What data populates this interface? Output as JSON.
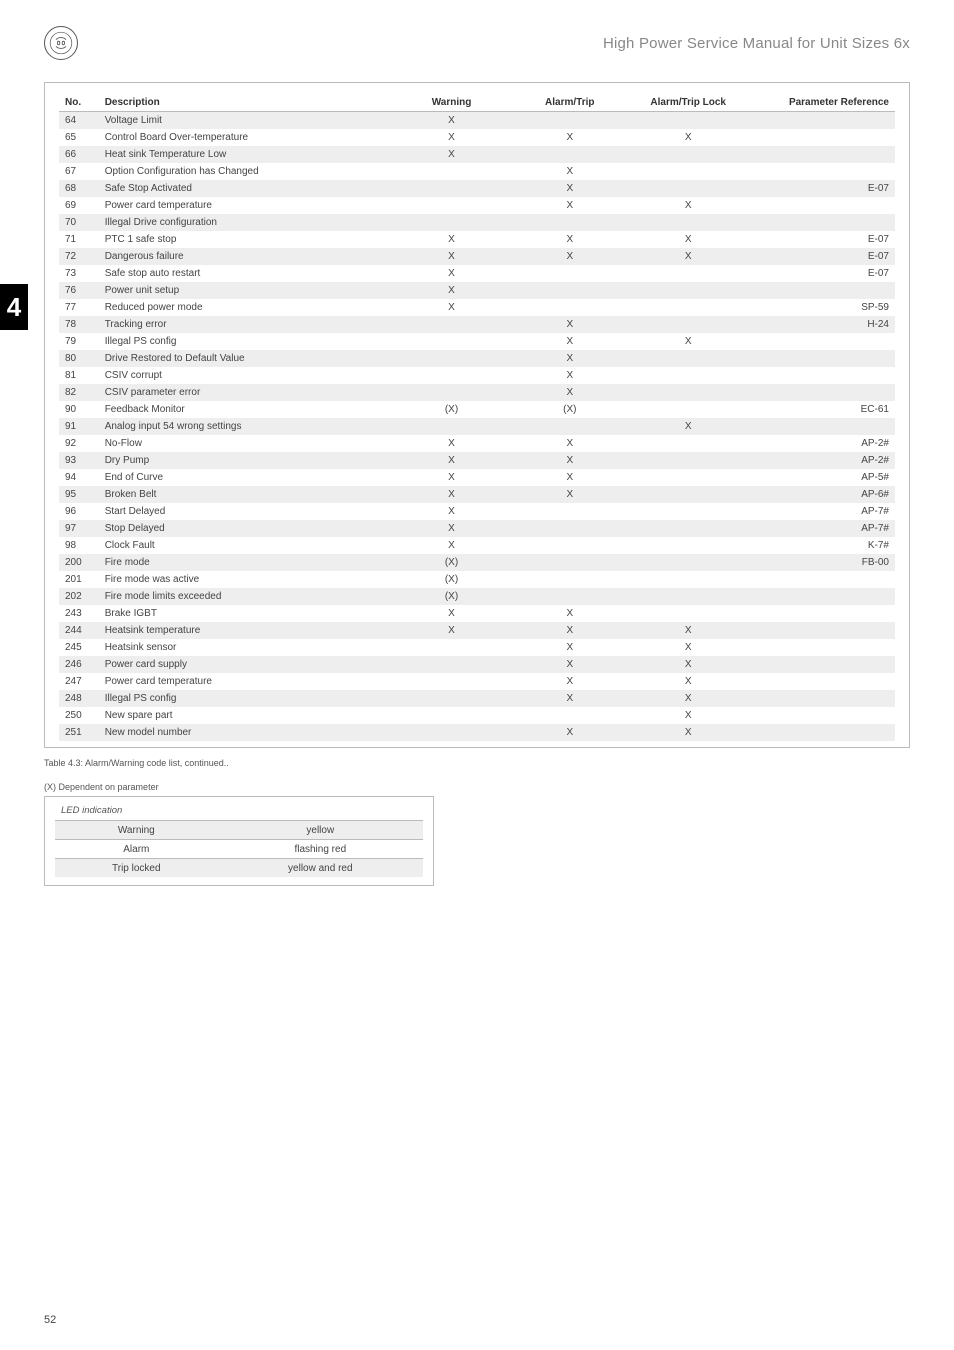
{
  "header": {
    "title": "High Power Service Manual for Unit Sizes 6x"
  },
  "sideTab": "4",
  "pageNumber": "52",
  "mainTable": {
    "columns": {
      "no": "No.",
      "desc": "Description",
      "warn": "Warning",
      "trip": "Alarm/Trip",
      "lock": "Alarm/Trip Lock",
      "ref": "Parameter Reference"
    },
    "rows": [
      {
        "no": "64",
        "desc": "Voltage Limit",
        "warn": "X",
        "trip": "",
        "lock": "",
        "ref": "",
        "shaded": true
      },
      {
        "no": "65",
        "desc": "Control Board Over-temperature",
        "warn": "X",
        "trip": "X",
        "lock": "X",
        "ref": "",
        "shaded": false
      },
      {
        "no": "66",
        "desc": "Heat sink Temperature Low",
        "warn": "X",
        "trip": "",
        "lock": "",
        "ref": "",
        "shaded": true
      },
      {
        "no": "67",
        "desc": "Option Configuration has Changed",
        "warn": "",
        "trip": "X",
        "lock": "",
        "ref": "",
        "shaded": false
      },
      {
        "no": "68",
        "desc": "Safe Stop Activated",
        "warn": "",
        "trip": "X",
        "lock": "",
        "ref": "E-07",
        "shaded": true
      },
      {
        "no": "69",
        "desc": "Power card temperature",
        "warn": "",
        "trip": "X",
        "lock": "X",
        "ref": "",
        "shaded": false
      },
      {
        "no": "70",
        "desc": "Illegal Drive configuration",
        "warn": "",
        "trip": "",
        "lock": "",
        "ref": "",
        "shaded": true
      },
      {
        "no": "71",
        "desc": "PTC 1 safe stop",
        "warn": "X",
        "trip": "X",
        "lock": "X",
        "ref": "E-07",
        "shaded": false
      },
      {
        "no": "72",
        "desc": "Dangerous failure",
        "warn": "X",
        "trip": "X",
        "lock": "X",
        "ref": "E-07",
        "shaded": true
      },
      {
        "no": "73",
        "desc": "Safe stop auto restart",
        "warn": "X",
        "trip": "",
        "lock": "",
        "ref": "E-07",
        "shaded": false
      },
      {
        "no": "76",
        "desc": "Power unit setup",
        "warn": "X",
        "trip": "",
        "lock": "",
        "ref": "",
        "shaded": true
      },
      {
        "no": "77",
        "desc": "Reduced power mode",
        "warn": "X",
        "trip": "",
        "lock": "",
        "ref": "SP-59",
        "shaded": false
      },
      {
        "no": "78",
        "desc": "Tracking error",
        "warn": "",
        "trip": "X",
        "lock": "",
        "ref": "H-24",
        "shaded": true
      },
      {
        "no": "79",
        "desc": "Illegal PS config",
        "warn": "",
        "trip": "X",
        "lock": "X",
        "ref": "",
        "shaded": false
      },
      {
        "no": "80",
        "desc": "Drive Restored to Default Value",
        "warn": "",
        "trip": "X",
        "lock": "",
        "ref": "",
        "shaded": true
      },
      {
        "no": "81",
        "desc": "CSIV corrupt",
        "warn": "",
        "trip": "X",
        "lock": "",
        "ref": "",
        "shaded": false
      },
      {
        "no": "82",
        "desc": "CSIV parameter error",
        "warn": "",
        "trip": "X",
        "lock": "",
        "ref": "",
        "shaded": true
      },
      {
        "no": "90",
        "desc": "Feedback Monitor",
        "warn": "(X)",
        "trip": "(X)",
        "lock": "",
        "ref": "EC-61",
        "shaded": false
      },
      {
        "no": "91",
        "desc": "Analog input 54 wrong settings",
        "warn": "",
        "trip": "",
        "lock": "X",
        "ref": "",
        "shaded": true
      },
      {
        "no": "92",
        "desc": "No-Flow",
        "warn": "X",
        "trip": "X",
        "lock": "",
        "ref": "AP-2#",
        "shaded": false
      },
      {
        "no": "93",
        "desc": "Dry Pump",
        "warn": "X",
        "trip": "X",
        "lock": "",
        "ref": "AP-2#",
        "shaded": true
      },
      {
        "no": "94",
        "desc": "End of Curve",
        "warn": "X",
        "trip": "X",
        "lock": "",
        "ref": "AP-5#",
        "shaded": false
      },
      {
        "no": "95",
        "desc": "Broken Belt",
        "warn": "X",
        "trip": "X",
        "lock": "",
        "ref": "AP-6#",
        "shaded": true
      },
      {
        "no": "96",
        "desc": "Start Delayed",
        "warn": "X",
        "trip": "",
        "lock": "",
        "ref": "AP-7#",
        "shaded": false
      },
      {
        "no": "97",
        "desc": "Stop Delayed",
        "warn": "X",
        "trip": "",
        "lock": "",
        "ref": "AP-7#",
        "shaded": true
      },
      {
        "no": "98",
        "desc": "Clock Fault",
        "warn": "X",
        "trip": "",
        "lock": "",
        "ref": "K-7#",
        "shaded": false
      },
      {
        "no": "200",
        "desc": "Fire mode",
        "warn": "(X)",
        "trip": "",
        "lock": "",
        "ref": "FB-00",
        "shaded": true
      },
      {
        "no": "201",
        "desc": "Fire mode was active",
        "warn": "(X)",
        "trip": "",
        "lock": "",
        "ref": "",
        "shaded": false
      },
      {
        "no": "202",
        "desc": "Fire mode limits exceeded",
        "warn": "(X)",
        "trip": "",
        "lock": "",
        "ref": "",
        "shaded": true
      },
      {
        "no": "243",
        "desc": "Brake IGBT",
        "warn": "X",
        "trip": "X",
        "lock": "",
        "ref": "",
        "shaded": false
      },
      {
        "no": "244",
        "desc": "Heatsink temperature",
        "warn": "X",
        "trip": "X",
        "lock": "X",
        "ref": "",
        "shaded": true
      },
      {
        "no": "245",
        "desc": "Heatsink sensor",
        "warn": "",
        "trip": "X",
        "lock": "X",
        "ref": "",
        "shaded": false
      },
      {
        "no": "246",
        "desc": "Power card supply",
        "warn": "",
        "trip": "X",
        "lock": "X",
        "ref": "",
        "shaded": true
      },
      {
        "no": "247",
        "desc": "Power card temperature",
        "warn": "",
        "trip": "X",
        "lock": "X",
        "ref": "",
        "shaded": false
      },
      {
        "no": "248",
        "desc": "Illegal PS config",
        "warn": "",
        "trip": "X",
        "lock": "X",
        "ref": "",
        "shaded": true
      },
      {
        "no": "250",
        "desc": "New spare part",
        "warn": "",
        "trip": "",
        "lock": "X",
        "ref": "",
        "shaded": false
      },
      {
        "no": "251",
        "desc": "New model number",
        "warn": "",
        "trip": "X",
        "lock": "X",
        "ref": "",
        "shaded": true
      }
    ]
  },
  "captions": {
    "tableCaption": "Table 4.3: Alarm/Warning code list, continued..",
    "dependentNote": "(X) Dependent on parameter"
  },
  "ledTable": {
    "title": "LED indication",
    "rows": [
      {
        "state": "Warning",
        "color": "yellow",
        "shaded": true
      },
      {
        "state": "Alarm",
        "color": "flashing red",
        "shaded": false
      },
      {
        "state": "Trip locked",
        "color": "yellow and red",
        "shaded": true
      }
    ]
  }
}
